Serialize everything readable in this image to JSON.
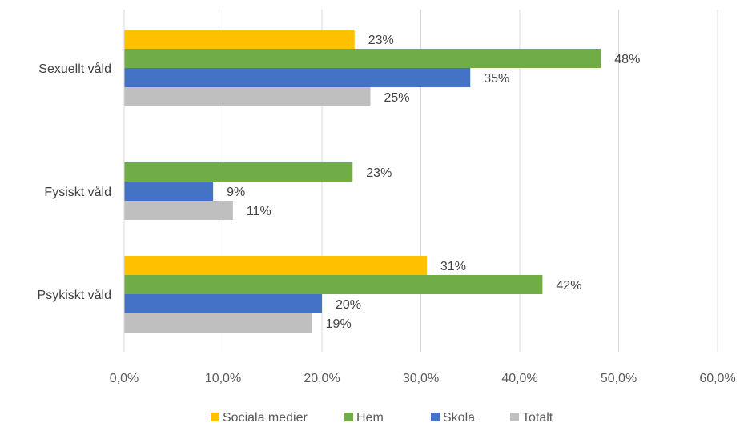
{
  "chart_data": {
    "type": "bar",
    "orientation": "horizontal",
    "categories": [
      "Sexuellt våld",
      "Fysiskt våld",
      "Psykiskt våld"
    ],
    "series": [
      {
        "name": "Sociala medier",
        "color": "#FFC000",
        "values": [
          23.3,
          null,
          30.6
        ],
        "labels": [
          "23%",
          null,
          "31%"
        ]
      },
      {
        "name": "Hem",
        "color": "#70AD47",
        "values": [
          48.2,
          23.1,
          42.3
        ],
        "labels": [
          "48%",
          "23%",
          "42%"
        ]
      },
      {
        "name": "Skola",
        "color": "#4472C4",
        "values": [
          35.0,
          9.0,
          20.0
        ],
        "labels": [
          "35%",
          "9%",
          "20%"
        ]
      },
      {
        "name": "Totalt",
        "color": "#BFBFBF",
        "values": [
          24.9,
          11.0,
          19.0
        ],
        "labels": [
          "25%",
          "11%",
          "19%"
        ]
      }
    ],
    "xlim": [
      0,
      60
    ],
    "xticks": [
      "0,0%",
      "10,0%",
      "20,0%",
      "30,0%",
      "40,0%",
      "50,0%",
      "60,0%"
    ],
    "grid": true,
    "legend_position": "bottom"
  }
}
